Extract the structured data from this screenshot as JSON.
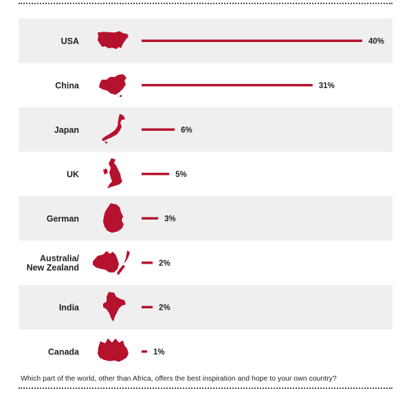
{
  "colors": {
    "accent": "#b5122e",
    "row_shade": "#efefef",
    "text": "#222222"
  },
  "footer": {
    "question": "Which part of the world, other than Africa, offers the best inspiration and hope to your own country?"
  },
  "chart_data": {
    "type": "bar",
    "orientation": "horizontal",
    "categories": [
      "USA",
      "China",
      "Japan",
      "UK",
      "German",
      "Australia/\nNew Zealand",
      "India",
      "Canada"
    ],
    "values": [
      40,
      31,
      6,
      5,
      3,
      2,
      2,
      1
    ],
    "value_labels": [
      "40%",
      "31%",
      "6%",
      "5%",
      "3%",
      "2%",
      "2%",
      "1%"
    ],
    "icons": [
      "usa-map-icon",
      "china-map-icon",
      "japan-map-icon",
      "uk-map-icon",
      "germany-map-icon",
      "australia-new-zealand-map-icon",
      "india-map-icon",
      "canada-map-icon"
    ],
    "unit": "%",
    "title": "",
    "xlabel": "",
    "ylabel": "",
    "xlim": [
      0,
      40
    ],
    "grid": false,
    "legend": "none",
    "row_shading": "alternating, first row shaded"
  }
}
